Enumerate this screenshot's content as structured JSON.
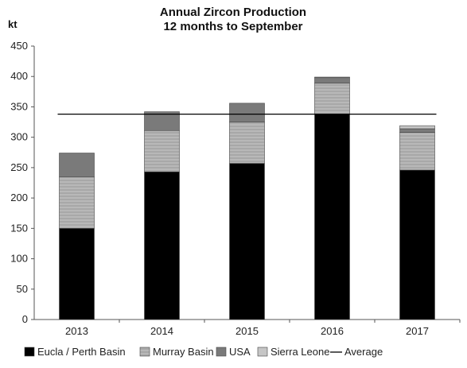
{
  "chart_data": {
    "type": "bar",
    "stacked": true,
    "title": "Annual Zircon Production",
    "subtitle": "12 months to September",
    "ylabel": "kt",
    "xlabel": "",
    "ylim": [
      0,
      450
    ],
    "yticks": [
      0,
      50,
      100,
      150,
      200,
      250,
      300,
      350,
      400,
      450
    ],
    "categories": [
      "2013",
      "2014",
      "2015",
      "2016",
      "2017"
    ],
    "series": [
      {
        "name": "Eucla / Perth Basin",
        "values": [
          150,
          243,
          257,
          338,
          246
        ],
        "color": "#000000"
      },
      {
        "name": "Murray Basin",
        "values": [
          85,
          68,
          68,
          51,
          62
        ],
        "color": "#a8a8a8"
      },
      {
        "name": "USA",
        "values": [
          39,
          31,
          31,
          9,
          6
        ],
        "color": "#7a7a7a"
      },
      {
        "name": "Sierra Leone",
        "values": [
          0,
          0,
          0,
          1,
          5
        ],
        "color": "#c6c6c6"
      }
    ],
    "average": {
      "name": "Average",
      "value": 338,
      "color": "#000000"
    },
    "legend": "bottom",
    "grid": false
  }
}
